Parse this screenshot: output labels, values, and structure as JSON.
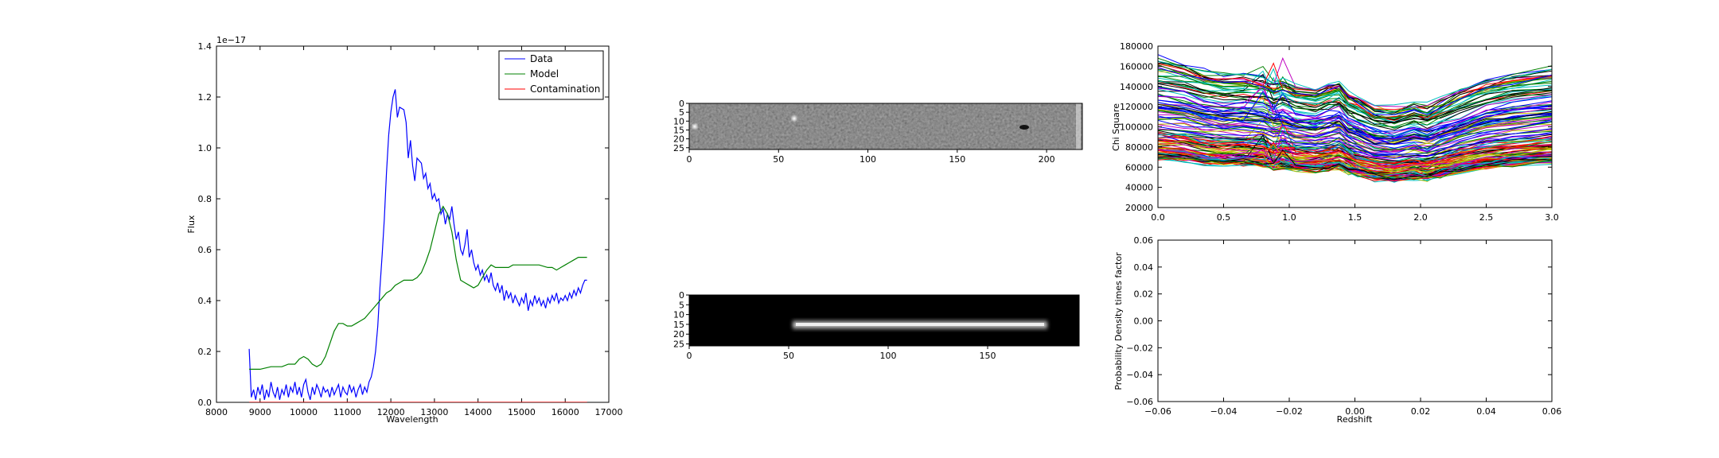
{
  "chart_data": [
    {
      "type": "line",
      "xlabel": "Wavelength",
      "ylabel": "Flux",
      "offset_text": "1e−17",
      "xlim": [
        8000,
        17000
      ],
      "ylim": [
        0.0,
        1.4
      ],
      "xticks": [
        8000,
        9000,
        10000,
        11000,
        12000,
        13000,
        14000,
        15000,
        16000,
        17000
      ],
      "yticks": [
        "0.0",
        "0.2",
        "0.4",
        "0.6",
        "0.8",
        "1.0",
        "1.2",
        "1.4"
      ],
      "legend_position": "top-right",
      "series": [
        {
          "name": "Data",
          "color": "#0000ff",
          "points": [
            [
              8750,
              0.21
            ],
            [
              8800,
              0.02
            ],
            [
              8850,
              0.05
            ],
            [
              8900,
              0.01
            ],
            [
              8950,
              0.06
            ],
            [
              9000,
              0.03
            ],
            [
              9050,
              0.07
            ],
            [
              9100,
              0.01
            ],
            [
              9150,
              0.05
            ],
            [
              9200,
              0.02
            ],
            [
              9250,
              0.08
            ],
            [
              9300,
              0.04
            ],
            [
              9350,
              0.02
            ],
            [
              9400,
              0.06
            ],
            [
              9450,
              0.01
            ],
            [
              9500,
              0.05
            ],
            [
              9550,
              0.03
            ],
            [
              9600,
              0.07
            ],
            [
              9650,
              0.02
            ],
            [
              9700,
              0.06
            ],
            [
              9750,
              0.04
            ],
            [
              9800,
              0.08
            ],
            [
              9850,
              0.03
            ],
            [
              9900,
              0.06
            ],
            [
              9950,
              0.02
            ],
            [
              10000,
              0.07
            ],
            [
              10050,
              0.09
            ],
            [
              10100,
              0.04
            ],
            [
              10150,
              0.01
            ],
            [
              10200,
              0.06
            ],
            [
              10250,
              0.03
            ],
            [
              10300,
              0.07
            ],
            [
              10350,
              0.05
            ],
            [
              10400,
              0.02
            ],
            [
              10450,
              0.06
            ],
            [
              10500,
              0.04
            ],
            [
              10550,
              0.05
            ],
            [
              10600,
              0.02
            ],
            [
              10650,
              0.06
            ],
            [
              10700,
              0.03
            ],
            [
              10750,
              0.05
            ],
            [
              10800,
              0.07
            ],
            [
              10850,
              0.02
            ],
            [
              10900,
              0.06
            ],
            [
              10950,
              0.04
            ],
            [
              11000,
              0.03
            ],
            [
              11050,
              0.07
            ],
            [
              11100,
              0.04
            ],
            [
              11150,
              0.06
            ],
            [
              11200,
              0.02
            ],
            [
              11250,
              0.05
            ],
            [
              11300,
              0.07
            ],
            [
              11350,
              0.03
            ],
            [
              11400,
              0.06
            ],
            [
              11450,
              0.04
            ],
            [
              11500,
              0.08
            ],
            [
              11550,
              0.1
            ],
            [
              11600,
              0.14
            ],
            [
              11650,
              0.2
            ],
            [
              11700,
              0.3
            ],
            [
              11750,
              0.45
            ],
            [
              11800,
              0.58
            ],
            [
              11850,
              0.72
            ],
            [
              11900,
              0.9
            ],
            [
              11950,
              1.05
            ],
            [
              12000,
              1.14
            ],
            [
              12050,
              1.2
            ],
            [
              12100,
              1.23
            ],
            [
              12150,
              1.12
            ],
            [
              12200,
              1.16
            ],
            [
              12300,
              1.15
            ],
            [
              12350,
              1.1
            ],
            [
              12400,
              0.96
            ],
            [
              12450,
              1.03
            ],
            [
              12500,
              0.93
            ],
            [
              12550,
              0.87
            ],
            [
              12600,
              0.96
            ],
            [
              12700,
              0.94
            ],
            [
              12750,
              0.88
            ],
            [
              12800,
              0.9
            ],
            [
              12850,
              0.84
            ],
            [
              12900,
              0.86
            ],
            [
              12950,
              0.8
            ],
            [
              13000,
              0.82
            ],
            [
              13050,
              0.79
            ],
            [
              13100,
              0.8
            ],
            [
              13150,
              0.74
            ],
            [
              13200,
              0.76
            ],
            [
              13250,
              0.7
            ],
            [
              13300,
              0.74
            ],
            [
              13350,
              0.72
            ],
            [
              13400,
              0.77
            ],
            [
              13450,
              0.7
            ],
            [
              13500,
              0.64
            ],
            [
              13550,
              0.67
            ],
            [
              13600,
              0.6
            ],
            [
              13650,
              0.58
            ],
            [
              13700,
              0.62
            ],
            [
              13750,
              0.68
            ],
            [
              13800,
              0.57
            ],
            [
              13850,
              0.6
            ],
            [
              13900,
              0.55
            ],
            [
              13950,
              0.52
            ],
            [
              14000,
              0.54
            ],
            [
              14050,
              0.5
            ],
            [
              14100,
              0.52
            ],
            [
              14150,
              0.48
            ],
            [
              14200,
              0.5
            ],
            [
              14250,
              0.47
            ],
            [
              14300,
              0.51
            ],
            [
              14350,
              0.46
            ],
            [
              14400,
              0.44
            ],
            [
              14450,
              0.47
            ],
            [
              14500,
              0.43
            ],
            [
              14550,
              0.46
            ],
            [
              14600,
              0.4
            ],
            [
              14650,
              0.44
            ],
            [
              14700,
              0.41
            ],
            [
              14750,
              0.43
            ],
            [
              14800,
              0.39
            ],
            [
              14850,
              0.42
            ],
            [
              14900,
              0.4
            ],
            [
              14950,
              0.38
            ],
            [
              15000,
              0.41
            ],
            [
              15050,
              0.39
            ],
            [
              15100,
              0.43
            ],
            [
              15150,
              0.36
            ],
            [
              15200,
              0.4
            ],
            [
              15250,
              0.38
            ],
            [
              15300,
              0.42
            ],
            [
              15350,
              0.39
            ],
            [
              15400,
              0.41
            ],
            [
              15450,
              0.38
            ],
            [
              15500,
              0.4
            ],
            [
              15550,
              0.37
            ],
            [
              15600,
              0.41
            ],
            [
              15650,
              0.39
            ],
            [
              15700,
              0.42
            ],
            [
              15750,
              0.4
            ],
            [
              15800,
              0.43
            ],
            [
              15850,
              0.39
            ],
            [
              15900,
              0.41
            ],
            [
              15950,
              0.4
            ],
            [
              16000,
              0.42
            ],
            [
              16050,
              0.4
            ],
            [
              16100,
              0.43
            ],
            [
              16150,
              0.41
            ],
            [
              16200,
              0.44
            ],
            [
              16250,
              0.42
            ],
            [
              16300,
              0.45
            ],
            [
              16350,
              0.43
            ],
            [
              16400,
              0.46
            ],
            [
              16450,
              0.48
            ],
            [
              16500,
              0.48
            ]
          ]
        },
        {
          "name": "Model",
          "color": "#008000",
          "points": [
            [
              8750,
              0.13
            ],
            [
              9000,
              0.13
            ],
            [
              9250,
              0.14
            ],
            [
              9500,
              0.14
            ],
            [
              9650,
              0.15
            ],
            [
              9800,
              0.15
            ],
            [
              9900,
              0.17
            ],
            [
              10000,
              0.18
            ],
            [
              10100,
              0.17
            ],
            [
              10200,
              0.15
            ],
            [
              10300,
              0.14
            ],
            [
              10400,
              0.15
            ],
            [
              10500,
              0.18
            ],
            [
              10600,
              0.23
            ],
            [
              10700,
              0.28
            ],
            [
              10800,
              0.31
            ],
            [
              10900,
              0.31
            ],
            [
              11000,
              0.3
            ],
            [
              11100,
              0.3
            ],
            [
              11200,
              0.31
            ],
            [
              11300,
              0.32
            ],
            [
              11400,
              0.33
            ],
            [
              11500,
              0.35
            ],
            [
              11600,
              0.37
            ],
            [
              11700,
              0.39
            ],
            [
              11800,
              0.41
            ],
            [
              11900,
              0.43
            ],
            [
              12000,
              0.44
            ],
            [
              12100,
              0.46
            ],
            [
              12200,
              0.47
            ],
            [
              12300,
              0.48
            ],
            [
              12400,
              0.48
            ],
            [
              12500,
              0.48
            ],
            [
              12600,
              0.49
            ],
            [
              12700,
              0.51
            ],
            [
              12800,
              0.55
            ],
            [
              12900,
              0.6
            ],
            [
              13000,
              0.67
            ],
            [
              13100,
              0.74
            ],
            [
              13200,
              0.77
            ],
            [
              13300,
              0.74
            ],
            [
              13400,
              0.67
            ],
            [
              13500,
              0.56
            ],
            [
              13600,
              0.48
            ],
            [
              13700,
              0.47
            ],
            [
              13800,
              0.46
            ],
            [
              13900,
              0.45
            ],
            [
              14000,
              0.46
            ],
            [
              14100,
              0.49
            ],
            [
              14200,
              0.52
            ],
            [
              14300,
              0.54
            ],
            [
              14400,
              0.53
            ],
            [
              14500,
              0.53
            ],
            [
              14600,
              0.53
            ],
            [
              14700,
              0.53
            ],
            [
              14800,
              0.54
            ],
            [
              14900,
              0.54
            ],
            [
              15000,
              0.54
            ],
            [
              15200,
              0.54
            ],
            [
              15400,
              0.54
            ],
            [
              15600,
              0.53
            ],
            [
              15700,
              0.53
            ],
            [
              15800,
              0.52
            ],
            [
              15900,
              0.53
            ],
            [
              16000,
              0.54
            ],
            [
              16100,
              0.55
            ],
            [
              16200,
              0.56
            ],
            [
              16300,
              0.57
            ],
            [
              16400,
              0.57
            ],
            [
              16500,
              0.57
            ]
          ]
        },
        {
          "name": "Contamination",
          "color": "#ff0000",
          "points": [
            [
              8750,
              0.0
            ],
            [
              16500,
              0.0
            ]
          ]
        }
      ]
    },
    {
      "type": "heatmap",
      "xticks": [
        0,
        50,
        100,
        150,
        200
      ],
      "yticks": [
        0,
        5,
        10,
        15,
        20,
        25
      ],
      "xlim": [
        0,
        220
      ],
      "ylim": [
        0,
        26
      ],
      "colormap": "gray"
    },
    {
      "type": "heatmap",
      "xticks": [
        0,
        50,
        100,
        150
      ],
      "yticks": [
        0,
        5,
        10,
        15,
        20,
        25
      ],
      "xlim": [
        0,
        196
      ],
      "ylim": [
        0,
        26
      ],
      "colormap": "gray"
    },
    {
      "type": "line",
      "ylabel": "Chi Square",
      "xlim": [
        0.0,
        3.0
      ],
      "ylim": [
        20000,
        180000
      ],
      "xticks": [
        "0.0",
        "0.5",
        "1.0",
        "1.5",
        "2.0",
        "2.5",
        "3.0"
      ],
      "yticks": [
        "20000",
        "40000",
        "60000",
        "80000",
        "100000",
        "120000",
        "140000",
        "160000",
        "180000"
      ],
      "series_count": 150,
      "palette": [
        "#0000ff",
        "#008000",
        "#ff0000",
        "#00bfbf",
        "#bf00bf",
        "#bfbf00",
        "#000000"
      ],
      "z": [
        0.0,
        0.2,
        0.35,
        0.5,
        0.65,
        0.8,
        0.88,
        0.95,
        1.05,
        1.2,
        1.3,
        1.38,
        1.45,
        1.52,
        1.65,
        1.8,
        1.95,
        2.05,
        2.15,
        2.3,
        2.5,
        2.7,
        3.0
      ],
      "base_shape": [
        1.0,
        0.97,
        0.92,
        0.9,
        0.9,
        0.88,
        0.84,
        0.86,
        0.82,
        0.8,
        0.83,
        0.85,
        0.78,
        0.74,
        0.68,
        0.66,
        0.7,
        0.68,
        0.72,
        0.79,
        0.86,
        0.9,
        0.94
      ],
      "level_range": [
        60000,
        145000
      ]
    },
    {
      "type": "line",
      "xlabel": "Redshift",
      "ylabel": "Probability Density times factor",
      "xlim": [
        -0.06,
        0.06
      ],
      "ylim": [
        -0.06,
        0.06
      ],
      "xticks": [
        "−0.06",
        "−0.04",
        "−0.02",
        "0.00",
        "0.02",
        "0.04",
        "0.06"
      ],
      "yticks": [
        "−0.06",
        "−0.04",
        "−0.02",
        "0.00",
        "0.02",
        "0.04",
        "0.06"
      ],
      "series": []
    }
  ]
}
